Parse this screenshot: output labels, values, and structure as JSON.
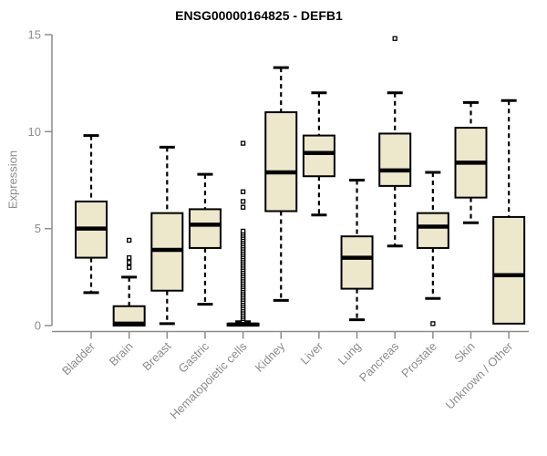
{
  "chart_data": {
    "type": "boxplot",
    "title": "ENSG00000164825 - DEFB1",
    "xlabel": "",
    "ylabel": "Expression",
    "ylim": [
      0,
      15
    ],
    "yticks": [
      0,
      5,
      10,
      15
    ],
    "grid": false,
    "legend": "none",
    "categories": [
      "Bladder",
      "Brain",
      "Breast",
      "Gastric",
      "Hematopoietic cells",
      "Kidney",
      "Liver",
      "Lung",
      "Pancreas",
      "Prostate",
      "Skin",
      "Unknown / Other"
    ],
    "boxes": [
      {
        "category": "Bladder",
        "whisker_low": 1.7,
        "q1": 3.5,
        "median": 5.0,
        "q3": 6.4,
        "whisker_high": 9.8,
        "outliers": []
      },
      {
        "category": "Brain",
        "whisker_low": 0.0,
        "q1": 0.0,
        "median": 0.1,
        "q3": 1.0,
        "whisker_high": 2.5,
        "outliers": [
          3.0,
          3.25,
          3.5,
          4.4
        ]
      },
      {
        "category": "Breast",
        "whisker_low": 0.1,
        "q1": 1.8,
        "median": 3.9,
        "q3": 5.8,
        "whisker_high": 9.2,
        "outliers": []
      },
      {
        "category": "Gastric",
        "whisker_low": 1.1,
        "q1": 4.0,
        "median": 5.2,
        "q3": 6.0,
        "whisker_high": 7.8,
        "outliers": []
      },
      {
        "category": "Hematopoietic cells",
        "whisker_low": 0.0,
        "q1": 0.0,
        "median": 0.05,
        "q3": 0.1,
        "whisker_high": 0.2,
        "outliers": [
          6.1,
          6.4,
          6.9,
          9.4
        ],
        "outlier_column": {
          "min": 0.25,
          "max": 4.9,
          "step": 0.11
        }
      },
      {
        "category": "Kidney",
        "whisker_low": 1.3,
        "q1": 5.9,
        "median": 7.9,
        "q3": 11.0,
        "whisker_high": 13.3,
        "outliers": []
      },
      {
        "category": "Liver",
        "whisker_low": 5.7,
        "q1": 7.7,
        "median": 8.9,
        "q3": 9.8,
        "whisker_high": 12.0,
        "outliers": []
      },
      {
        "category": "Lung",
        "whisker_low": 0.3,
        "q1": 1.9,
        "median": 3.5,
        "q3": 4.6,
        "whisker_high": 7.5,
        "outliers": []
      },
      {
        "category": "Pancreas",
        "whisker_low": 4.1,
        "q1": 7.2,
        "median": 8.0,
        "q3": 9.9,
        "whisker_high": 12.0,
        "outliers": [
          14.8
        ]
      },
      {
        "category": "Prostate",
        "whisker_low": 1.4,
        "q1": 4.0,
        "median": 5.1,
        "q3": 5.8,
        "whisker_high": 7.9,
        "outliers": [
          0.1
        ]
      },
      {
        "category": "Skin",
        "whisker_low": 5.3,
        "q1": 6.6,
        "median": 8.4,
        "q3": 10.2,
        "whisker_high": 11.5,
        "outliers": []
      },
      {
        "category": "Unknown / Other",
        "whisker_low": 0.1,
        "q1": 0.1,
        "median": 2.6,
        "q3": 5.6,
        "whisker_high": 11.6,
        "outliers": []
      }
    ],
    "style": {
      "box_fill": "#EDE7CC",
      "box_stroke": "#000000",
      "median_color": "#000000",
      "whisker_color": "#000000",
      "outlier_fill": "#ffffff",
      "axis_color": "#8C8C8C",
      "tick_label_color": "#8C8C8C",
      "title_color": "#000000",
      "background": "#ffffff"
    }
  }
}
